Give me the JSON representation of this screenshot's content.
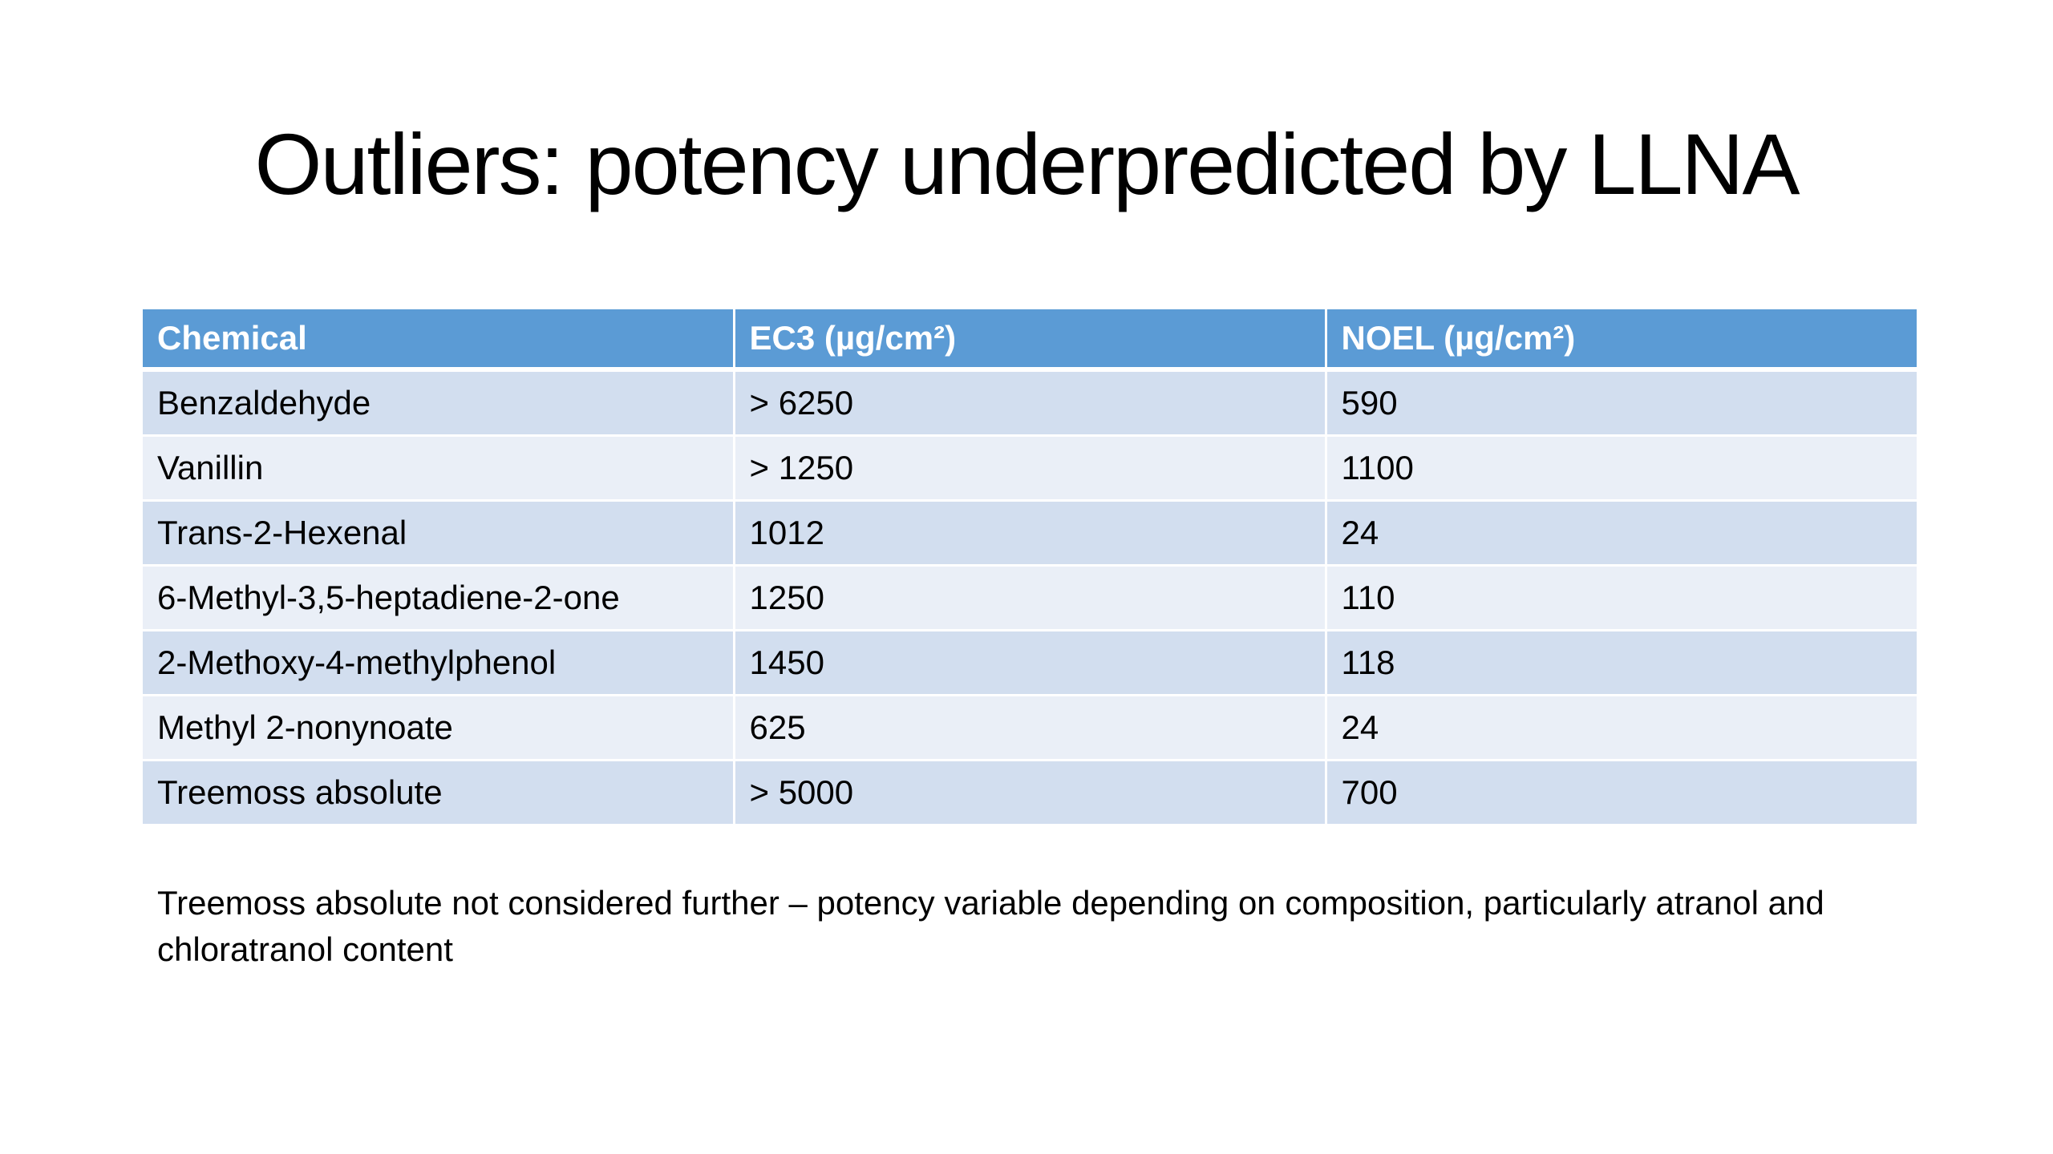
{
  "slide": {
    "title": "Outliers: potency underpredicted by LLNA",
    "footnote": "Treemoss absolute not considered further – potency variable depending on composition, particularly atranol and chloratranol content"
  },
  "table": {
    "headers": [
      "Chemical",
      "EC3 (µg/cm²)",
      "NOEL (µg/cm²)"
    ],
    "rows": [
      [
        "Benzaldehyde",
        "> 6250",
        "590"
      ],
      [
        "Vanillin",
        "> 1250",
        "1100"
      ],
      [
        "Trans-2-Hexenal",
        "1012",
        "24"
      ],
      [
        "6-Methyl-3,5-heptadiene-2-one",
        "1250",
        "110"
      ],
      [
        "2-Methoxy-4-methylphenol",
        "1450",
        "118"
      ],
      [
        "Methyl 2-nonynoate",
        "625",
        "24"
      ],
      [
        "Treemoss absolute",
        "> 5000",
        "700"
      ]
    ]
  },
  "colors": {
    "header_bg": "#5b9bd5",
    "row_odd_bg": "#d2deef",
    "row_even_bg": "#eaeff7"
  }
}
